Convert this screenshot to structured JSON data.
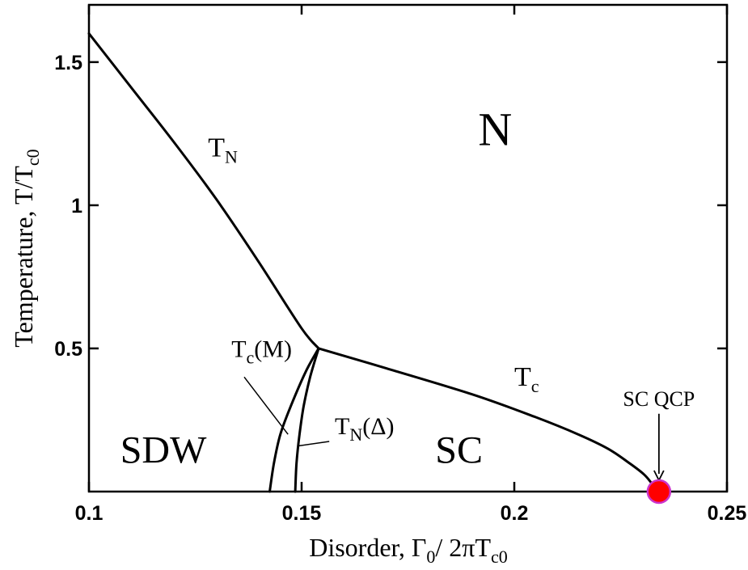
{
  "chart_data": {
    "type": "line",
    "xlabel_parts": [
      "Disorder, Γ",
      "0",
      "/ 2πT",
      "c0"
    ],
    "ylabel_parts": [
      "Temperature, T/T",
      "c0"
    ],
    "xlim": [
      0.1,
      0.25
    ],
    "ylim": [
      0,
      1.7
    ],
    "x_ticks": [
      {
        "value": 0.1,
        "label": "0.1"
      },
      {
        "value": 0.15,
        "label": "0.15"
      },
      {
        "value": 0.2,
        "label": "0.2"
      },
      {
        "value": 0.25,
        "label": "0.25"
      }
    ],
    "y_ticks": [
      {
        "value": 0.5,
        "label": "0.5"
      },
      {
        "value": 1.0,
        "label": "1"
      },
      {
        "value": 1.5,
        "label": "1.5"
      }
    ],
    "grid": false,
    "series": [
      {
        "key": "tn",
        "x": [
          0.1,
          0.11,
          0.12,
          0.13,
          0.14,
          0.15,
          0.154
        ],
        "y": [
          1.6,
          1.41,
          1.22,
          1.02,
          0.8,
          0.57,
          0.5
        ]
      },
      {
        "key": "tc",
        "x": [
          0.154,
          0.17,
          0.19,
          0.205,
          0.215,
          0.222,
          0.227,
          0.2305,
          0.2325,
          0.234
        ],
        "y": [
          0.5,
          0.43,
          0.34,
          0.26,
          0.2,
          0.15,
          0.1,
          0.06,
          0.025,
          0.0
        ]
      },
      {
        "key": "tc_m",
        "x": [
          0.1425,
          0.1435,
          0.145,
          0.1475,
          0.151,
          0.154
        ],
        "y": [
          0.0,
          0.1,
          0.2,
          0.3,
          0.42,
          0.5
        ]
      },
      {
        "key": "tn_delta",
        "x": [
          0.1485,
          0.1488,
          0.1495,
          0.1505,
          0.152,
          0.154
        ],
        "y": [
          0.0,
          0.1,
          0.2,
          0.3,
          0.4,
          0.5
        ]
      }
    ],
    "curve_labels": [
      {
        "key": "tn",
        "main": "T",
        "sub": "N",
        "suffix": "",
        "x": 0.128,
        "y": 1.17
      },
      {
        "key": "tc",
        "main": "T",
        "sub": "c",
        "suffix": "",
        "x": 0.2,
        "y": 0.37
      },
      {
        "key": "tc_m",
        "main": "T",
        "sub": "c",
        "suffix": "(M)",
        "x": 0.1335,
        "y": 0.47
      },
      {
        "key": "tn_delta",
        "main": "T",
        "sub": "N",
        "suffix": "(Δ)",
        "x": 0.1578,
        "y": 0.2
      }
    ],
    "regions": [
      {
        "key": "n",
        "label": "N",
        "x": 0.1955,
        "y": 1.21
      },
      {
        "key": "sdw",
        "label": "SDW",
        "x": 0.1175,
        "y": 0.1
      },
      {
        "key": "sc",
        "label": "SC",
        "x": 0.187,
        "y": 0.1
      }
    ],
    "qcp": {
      "label": "SC QCP",
      "x": 0.234,
      "y": 0.0,
      "fill": "#ff0000",
      "stroke": "#cc33cc"
    },
    "line_color": "#000000"
  }
}
